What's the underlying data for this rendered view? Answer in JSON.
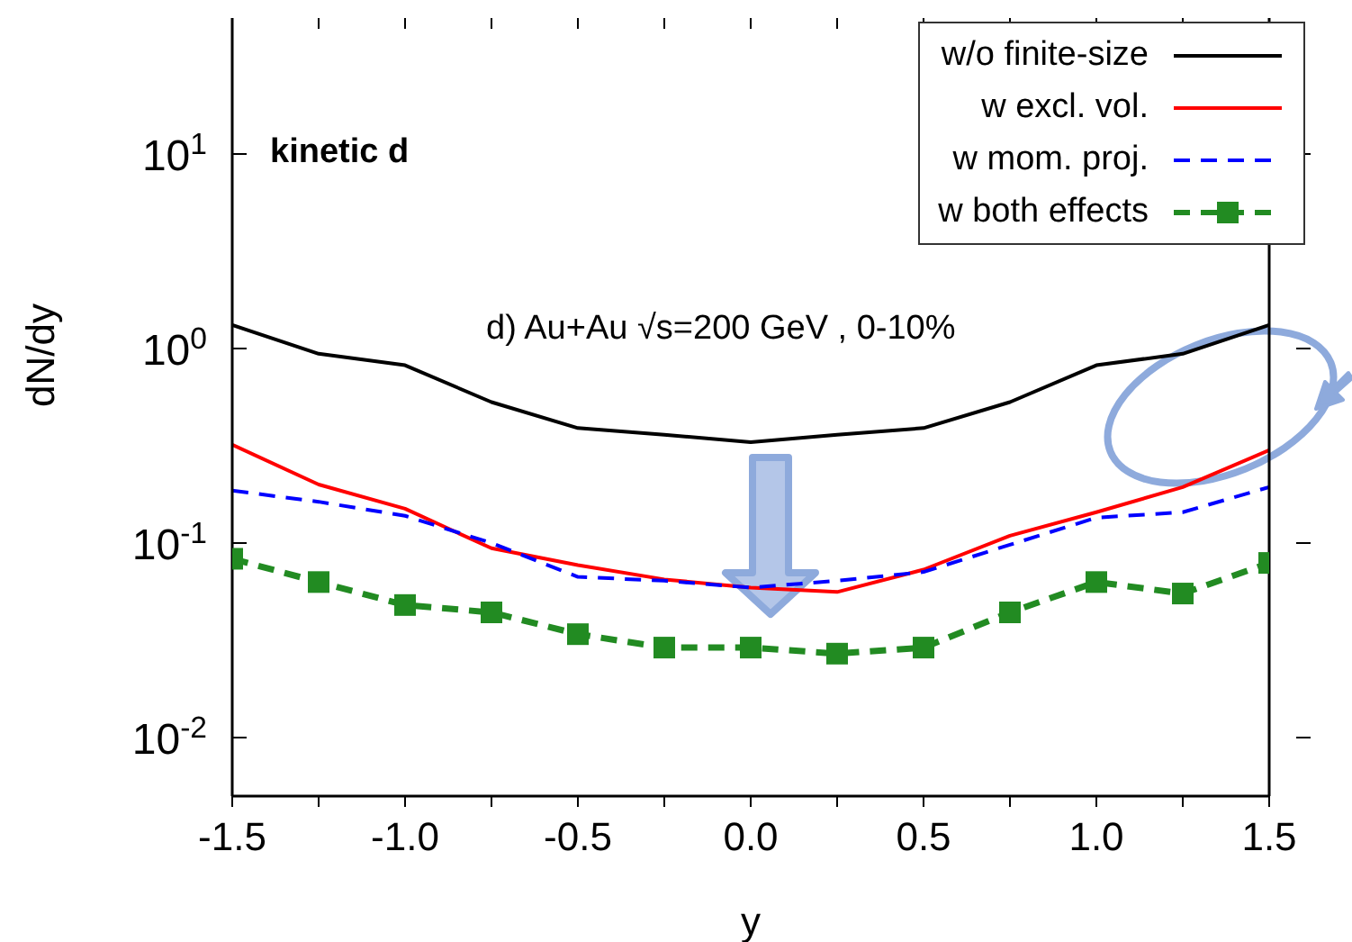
{
  "chart_data": {
    "type": "line",
    "xlabel": "y",
    "ylabel": "dN/dy",
    "annotations": [
      "kinetic d",
      "d) Au+Au √s=200 GeV , 0-10%"
    ],
    "x": [
      -1.5,
      -1.25,
      -1.0,
      -0.75,
      -0.5,
      -0.25,
      0,
      0.25,
      0.5,
      0.75,
      1.0,
      1.25,
      1.5
    ],
    "series": [
      {
        "name": "w/o finite-size",
        "color": "#000000",
        "line_style": "solid",
        "marker": "none",
        "values": [
          1.32,
          0.94,
          0.82,
          0.53,
          0.39,
          0.36,
          0.33,
          0.36,
          0.39,
          0.53,
          0.82,
          0.94,
          1.32
        ]
      },
      {
        "name": "w excl. vol.",
        "color": "#ff0000",
        "line_style": "solid",
        "marker": "none",
        "values": [
          0.32,
          0.2,
          0.15,
          0.094,
          0.077,
          0.065,
          0.059,
          0.056,
          0.073,
          0.109,
          0.144,
          0.194,
          0.3
        ]
      },
      {
        "name": "w mom. proj.",
        "color": "#0000ff",
        "line_style": "dashed",
        "marker": "none",
        "values": [
          0.186,
          0.163,
          0.138,
          0.1,
          0.067,
          0.064,
          0.059,
          0.064,
          0.071,
          0.098,
          0.135,
          0.144,
          0.194
        ]
      },
      {
        "name": "w both effects",
        "color": "#228b22",
        "line_style": "dashed",
        "marker": "square",
        "values": [
          0.083,
          0.063,
          0.048,
          0.044,
          0.034,
          0.029,
          0.029,
          0.027,
          0.029,
          0.044,
          0.063,
          0.055,
          0.079
        ]
      }
    ],
    "log": "y",
    "xlim": [
      -1.5,
      1.5
    ],
    "ylim": [
      0.005,
      50
    ],
    "xticks": [
      {
        "value": -1.5,
        "label": "-1.5"
      },
      {
        "value": -1.25,
        "label": null
      },
      {
        "value": -1,
        "label": "-1.0"
      },
      {
        "value": -0.75,
        "label": null
      },
      {
        "value": -0.5,
        "label": "-0.5"
      },
      {
        "value": -0.25,
        "label": null
      },
      {
        "value": 0,
        "label": "0.0"
      },
      {
        "value": 0.25,
        "label": null
      },
      {
        "value": 0.5,
        "label": "0.5"
      },
      {
        "value": 0.75,
        "label": null
      },
      {
        "value": 1,
        "label": "1.0"
      },
      {
        "value": 1.25,
        "label": null
      },
      {
        "value": 1.5,
        "label": "1.5"
      }
    ],
    "yticks": [
      {
        "value": 0.01,
        "label": "10$^{-2}$"
      },
      {
        "value": 0.1,
        "label": "10$^{-1}$"
      },
      {
        "value": 1,
        "label": "10$^{0}$"
      },
      {
        "value": 10,
        "label": "10$^{1}$"
      }
    ],
    "legend": "top right"
  }
}
